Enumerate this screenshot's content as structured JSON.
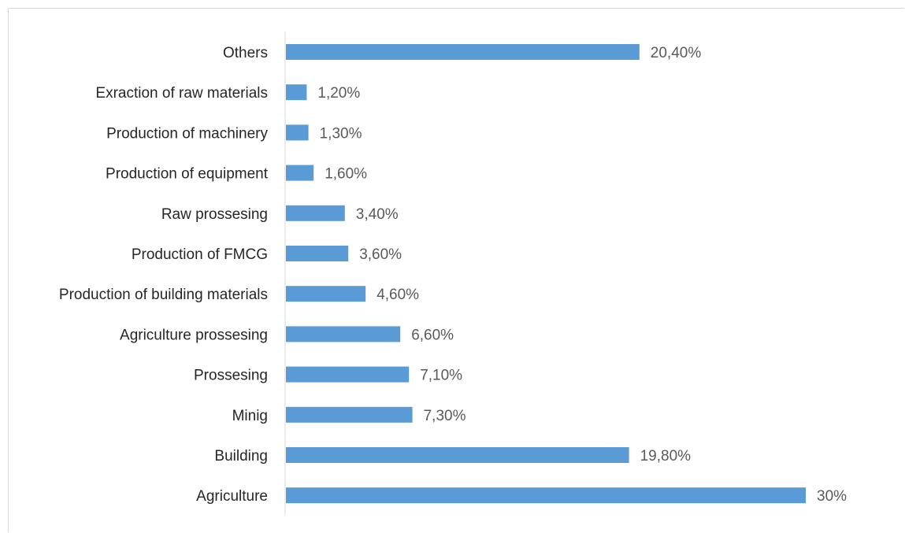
{
  "chart_data": {
    "type": "bar",
    "orientation": "horizontal",
    "categories": [
      "Others",
      "Exraction of raw materials",
      "Production of machinery",
      "Production of equipment",
      "Raw prossesing",
      "Production of FMCG",
      "Production of building materials",
      "Agriculture prossesing",
      "Prossesing",
      "Minig",
      "Building",
      "Agriculture"
    ],
    "values": [
      20.4,
      1.2,
      1.3,
      1.6,
      3.4,
      3.6,
      4.6,
      6.6,
      7.1,
      7.3,
      19.8,
      30
    ],
    "value_labels": [
      "20,40%",
      "1,20%",
      "1,30%",
      "1,60%",
      "3,40%",
      "3,60%",
      "4,60%",
      "6,60%",
      "7,10%",
      "7,30%",
      "19,80%",
      "30%"
    ],
    "title": "",
    "xlabel": "",
    "ylabel": "",
    "xlim": [
      0,
      30
    ],
    "grid": false,
    "legend": "none",
    "bar_color": "#5b9bd5",
    "axis_color": "#d9d9d9"
  }
}
